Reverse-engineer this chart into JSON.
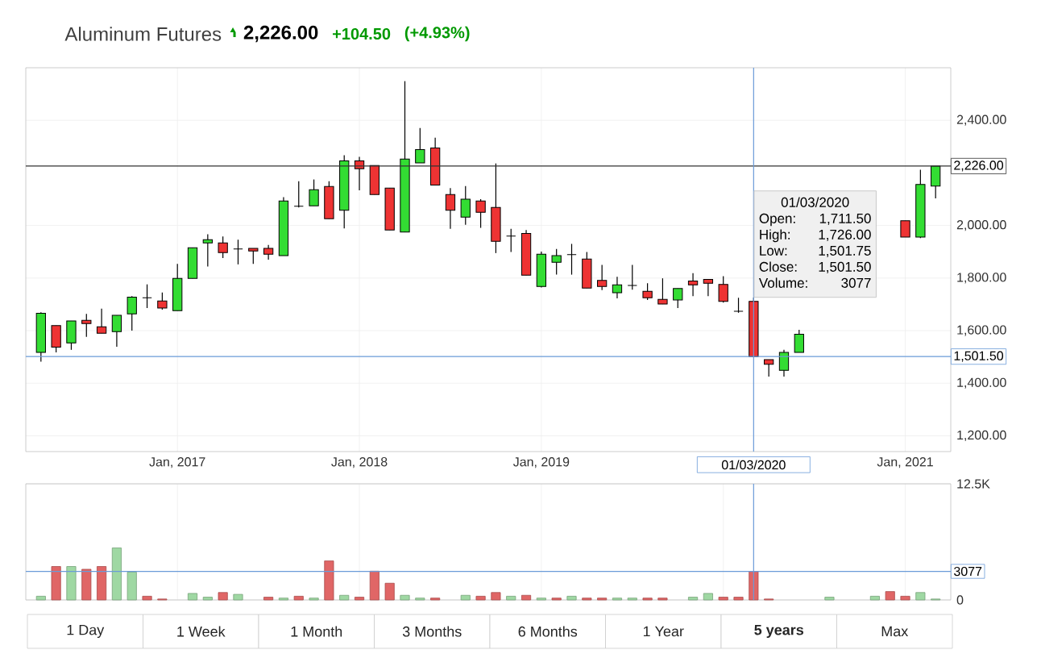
{
  "chart_data": [
    {
      "type": "candlestick",
      "title": "Aluminum Futures",
      "x": [
        "2016-04",
        "2016-05",
        "2016-06",
        "2016-07",
        "2016-08",
        "2016-09",
        "2016-10",
        "2016-11",
        "2016-12",
        "2017-01",
        "2017-02",
        "2017-03",
        "2017-04",
        "2017-05",
        "2017-06",
        "2017-07",
        "2017-08",
        "2017-09",
        "2017-10",
        "2017-11",
        "2017-12",
        "2018-01",
        "2018-02",
        "2018-03",
        "2018-04",
        "2018-05",
        "2018-06",
        "2018-07",
        "2018-08",
        "2018-09",
        "2018-10",
        "2018-11",
        "2018-12",
        "2019-01",
        "2019-02",
        "2019-03",
        "2019-04",
        "2019-05",
        "2019-06",
        "2019-07",
        "2019-08",
        "2019-09",
        "2019-10",
        "2019-11",
        "2019-12",
        "2020-01",
        "2020-02",
        "2020-03",
        "2020-04",
        "2020-05",
        "2020-06",
        "2021-01",
        "2021-02",
        "2021-03"
      ],
      "ohlc": [
        [
          1517,
          1670,
          1482,
          1666
        ],
        [
          1619,
          1619,
          1517,
          1537
        ],
        [
          1553,
          1637,
          1527,
          1637
        ],
        [
          1639,
          1664,
          1576,
          1627
        ],
        [
          1615,
          1684,
          1590,
          1590
        ],
        [
          1596,
          1658,
          1539,
          1658
        ],
        [
          1664,
          1731,
          1600,
          1727
        ],
        [
          1725,
          1776,
          1686,
          1725
        ],
        [
          1713,
          1745,
          1680,
          1686
        ],
        [
          1676,
          1854,
          1676,
          1799
        ],
        [
          1799,
          1915,
          1799,
          1915
        ],
        [
          1934,
          1967,
          1844,
          1946
        ],
        [
          1934,
          1958,
          1876,
          1897
        ],
        [
          1911,
          1946,
          1852,
          1911
        ],
        [
          1913,
          1913,
          1854,
          1903
        ],
        [
          1913,
          1926,
          1870,
          1891
        ],
        [
          1885,
          2108,
          1885,
          2093
        ],
        [
          2073,
          2168,
          2069,
          2073
        ],
        [
          2075,
          2175,
          2075,
          2136
        ],
        [
          2148,
          2168,
          2026,
          2026
        ],
        [
          2058,
          2267,
          1989,
          2246
        ],
        [
          2246,
          2261,
          2134,
          2216
        ],
        [
          2228,
          2228,
          2118,
          2118
        ],
        [
          2142,
          2142,
          1983,
          1983
        ],
        [
          1975,
          2549,
          1975,
          2253
        ],
        [
          2238,
          2371,
          2238,
          2289
        ],
        [
          2295,
          2334,
          2154,
          2154
        ],
        [
          2118,
          2142,
          1987,
          2058
        ],
        [
          2032,
          2150,
          2003,
          2100
        ],
        [
          2093,
          2100,
          1991,
          2050
        ],
        [
          2069,
          2236,
          1895,
          1940
        ],
        [
          1960,
          1987,
          1899,
          1960
        ],
        [
          1970,
          1983,
          1811,
          1811
        ],
        [
          1768,
          1901,
          1764,
          1891
        ],
        [
          1860,
          1911,
          1813,
          1885
        ],
        [
          1889,
          1930,
          1813,
          1889
        ],
        [
          1872,
          1899,
          1762,
          1762
        ],
        [
          1791,
          1850,
          1754,
          1768
        ],
        [
          1744,
          1805,
          1723,
          1774
        ],
        [
          1772,
          1850,
          1756,
          1772
        ],
        [
          1750,
          1780,
          1717,
          1725
        ],
        [
          1719,
          1799,
          1701,
          1701
        ],
        [
          1717,
          1760,
          1686,
          1760
        ],
        [
          1789,
          1819,
          1731,
          1774
        ],
        [
          1795,
          1795,
          1731,
          1780
        ],
        [
          1776,
          1807,
          1707,
          1711
        ],
        [
          1674,
          1725,
          1668,
          1674
        ],
        [
          1711.5,
          1726,
          1501.5,
          1501.5
        ],
        [
          1490,
          1490,
          1425,
          1472
        ],
        [
          1449,
          1527,
          1425,
          1517
        ],
        [
          1517,
          1603,
          1517,
          1586
        ],
        [
          2018,
          2018,
          1956,
          1956
        ],
        [
          1956,
          2212,
          1952,
          2156
        ],
        [
          2150,
          2226,
          2103,
          2226
        ]
      ],
      "colors": [
        "#33dd33",
        "#ee3333",
        "#33dd33",
        "#ee3333",
        "#ee3333",
        "#33dd33",
        "#33dd33",
        "#000000",
        "#ee3333",
        "#33dd33",
        "#33dd33",
        "#33dd33",
        "#ee3333",
        "#000000",
        "#ee3333",
        "#ee3333",
        "#33dd33",
        "#000000",
        "#33dd33",
        "#ee3333",
        "#33dd33",
        "#ee3333",
        "#ee3333",
        "#ee3333",
        "#33dd33",
        "#33dd33",
        "#ee3333",
        "#ee3333",
        "#33dd33",
        "#ee3333",
        "#ee3333",
        "#000000",
        "#ee3333",
        "#33dd33",
        "#33dd33",
        "#000000",
        "#ee3333",
        "#ee3333",
        "#33dd33",
        "#000000",
        "#ee3333",
        "#ee3333",
        "#33dd33",
        "#ee3333",
        "#ee3333",
        "#ee3333",
        "#000000",
        "#ee3333",
        "#ee3333",
        "#33dd33",
        "#33dd33",
        "#ee3333",
        "#33dd33",
        "#33dd33"
      ],
      "xlim": [
        "2016-03",
        "2021-04"
      ],
      "xticks": [
        {
          "value": "2017-01",
          "label": "Jan, 2017"
        },
        {
          "value": "2018-01",
          "label": "Jan, 2018"
        },
        {
          "value": "2019-01",
          "label": "Jan, 2019"
        },
        {
          "value": "2021-01",
          "label": "Jan, 2021"
        }
      ],
      "ylim": [
        1140,
        2600
      ],
      "yticks": [
        {
          "value": 1200,
          "label": "1,200.00"
        },
        {
          "value": 1400,
          "label": "1,400.00"
        },
        {
          "value": 1600,
          "label": "1,600.00"
        },
        {
          "value": 1800,
          "label": "1,800.00"
        },
        {
          "value": 2000,
          "label": "2,000.00"
        },
        {
          "value": 2400,
          "label": "2,400.00"
        }
      ],
      "grid": true,
      "ref_lines": [
        {
          "axis": "y",
          "value": 2226,
          "label": "2,226.00",
          "color": "#333333"
        },
        {
          "axis": "y",
          "value": 1501.5,
          "label": "1,501.50",
          "color": "#6a9bd8"
        },
        {
          "axis": "x",
          "value": "2020-03",
          "label": "01/03/2020",
          "color": "#6a9bd8"
        }
      ],
      "annotations": [
        "2,226.00",
        "+104.50",
        "(+4.93%)",
        "01/03/2020",
        "Open:",
        "1,711.50",
        "High:",
        "1,726.00",
        "Low:",
        "1,501.75",
        "Close:",
        "1,501.50",
        "Volume:",
        "3077",
        "1 Day",
        "1 Week",
        "1 Month",
        "3 Months",
        "6 Months",
        "1 Year",
        "**5 years**",
        "Max"
      ]
    },
    {
      "type": "bar",
      "x": [
        "2016-04",
        "2016-05",
        "2016-06",
        "2016-07",
        "2016-08",
        "2016-09",
        "2016-10",
        "2016-11",
        "2016-12",
        "2017-01",
        "2017-02",
        "2017-03",
        "2017-04",
        "2017-05",
        "2017-06",
        "2017-07",
        "2017-08",
        "2017-09",
        "2017-10",
        "2017-11",
        "2017-12",
        "2018-01",
        "2018-02",
        "2018-03",
        "2018-04",
        "2018-05",
        "2018-06",
        "2018-07",
        "2018-08",
        "2018-09",
        "2018-10",
        "2018-11",
        "2018-12",
        "2019-01",
        "2019-02",
        "2019-03",
        "2019-04",
        "2019-05",
        "2019-06",
        "2019-07",
        "2019-08",
        "2019-09",
        "2019-10",
        "2019-11",
        "2019-12",
        "2020-01",
        "2020-02",
        "2020-03",
        "2020-04",
        "2020-05",
        "2020-06",
        "2020-07",
        "2020-08",
        "2020-09",
        "2020-10",
        "2020-11",
        "2020-12",
        "2021-01",
        "2021-02",
        "2021-03"
      ],
      "values": [
        400,
        3600,
        3600,
        3300,
        3600,
        5600,
        3000,
        400,
        100,
        null,
        700,
        300,
        800,
        600,
        null,
        300,
        200,
        400,
        200,
        4200,
        500,
        300,
        3100,
        1800,
        500,
        200,
        200,
        null,
        500,
        400,
        800,
        400,
        500,
        200,
        200,
        400,
        200,
        200,
        200,
        200,
        200,
        200,
        null,
        300,
        700,
        300,
        300,
        3077,
        100,
        null,
        null,
        null,
        300,
        null,
        null,
        400,
        900,
        400,
        800,
        100
      ],
      "colors": [
        "#9fd8a3",
        "#e06666",
        "#9fd8a3",
        "#e06666",
        "#e06666",
        "#9fd8a3",
        "#9fd8a3",
        "#e06666",
        "#e06666",
        null,
        "#9fd8a3",
        "#9fd8a3",
        "#e06666",
        "#9fd8a3",
        null,
        "#e06666",
        "#9fd8a3",
        "#e06666",
        "#9fd8a3",
        "#e06666",
        "#9fd8a3",
        "#e06666",
        "#e06666",
        "#e06666",
        "#9fd8a3",
        "#9fd8a3",
        "#e06666",
        null,
        "#9fd8a3",
        "#e06666",
        "#e06666",
        "#9fd8a3",
        "#e06666",
        "#9fd8a3",
        "#e06666",
        "#9fd8a3",
        "#e06666",
        "#e06666",
        "#9fd8a3",
        "#9fd8a3",
        "#e06666",
        "#e06666",
        null,
        "#9fd8a3",
        "#9fd8a3",
        "#e06666",
        "#e06666",
        "#e06666",
        "#e06666",
        null,
        null,
        null,
        "#9fd8a3",
        null,
        null,
        "#9fd8a3",
        "#e06666",
        "#e06666",
        "#9fd8a3",
        "#9fd8a3"
      ],
      "xlim": [
        "2016-03",
        "2021-04"
      ],
      "xticks": [
        {
          "value": "2017-01",
          "label": null
        },
        {
          "value": "2018-01",
          "label": null
        },
        {
          "value": "2019-01",
          "label": null
        },
        {
          "value": "2020-01",
          "label": null
        },
        {
          "value": "2021-01",
          "label": null
        }
      ],
      "ylim": [
        0,
        12500
      ],
      "yticks": [
        0,
        {
          "value": 12500,
          "label": "12.5K"
        }
      ],
      "tick_labels": "y",
      "grid": true,
      "ref_lines": [
        {
          "axis": "y",
          "value": 3077,
          "label": "3077",
          "color": "#6a9bd8"
        },
        {
          "axis": "x",
          "value": "2020-03",
          "color": "#6a9bd8"
        }
      ]
    }
  ]
}
